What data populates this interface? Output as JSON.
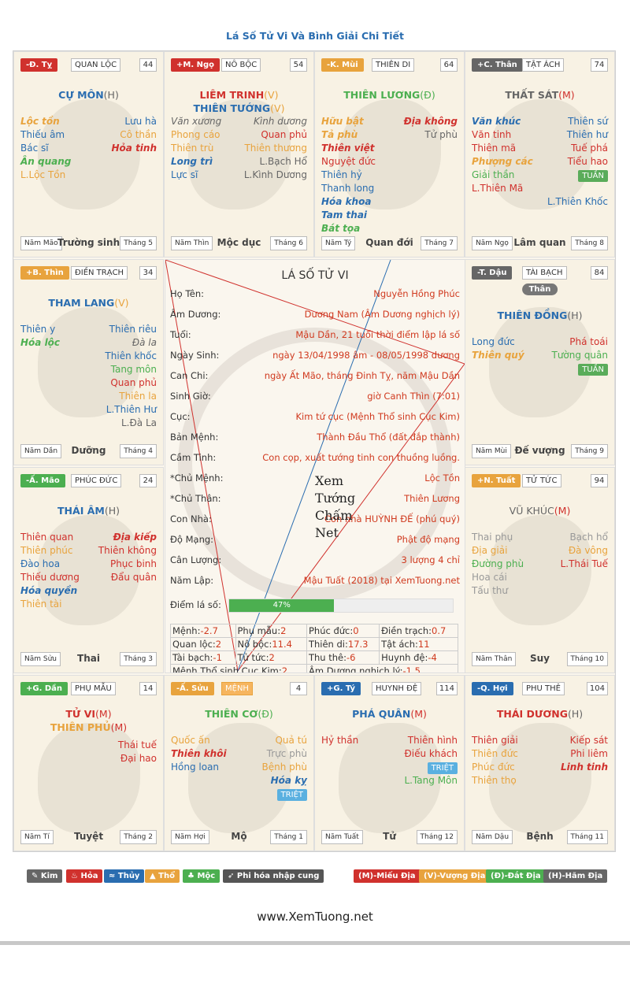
{
  "page": {
    "title": "Lá Số Tử Vi Và Bình Giải Chi Tiết",
    "footer": "www.XemTuong.net"
  },
  "cells": {
    "ty": {
      "badge": "-Đ. Tỵ",
      "palace": "QUAN LỘC",
      "num": "44",
      "main": [
        "CỰ MÔN"
      ],
      "quality": [
        "(H)"
      ],
      "stars": [
        [
          "Lộc tồn",
          "Lưu hà"
        ],
        [
          "Thiếu âm",
          "Cô thần"
        ],
        [
          "Bác sĩ",
          "Hỏa tinh"
        ],
        [
          "Ân quang",
          ""
        ],
        [
          "L.Lộc Tồn",
          ""
        ]
      ],
      "year": "Năm Mão",
      "stage": "Trường sinh",
      "month": "Tháng 5"
    },
    "ngo": {
      "badge": "+M. Ngọ",
      "palace": "NÔ BỘC",
      "num": "54",
      "main": [
        "LIÊM TRINH",
        "THIÊN TƯỚNG"
      ],
      "quality": [
        "(V)",
        "(V)"
      ],
      "stars": [
        [
          "Văn xương",
          "Kình dương"
        ],
        [
          "Phong cáo",
          "Quan phủ"
        ],
        [
          "Thiên trù",
          "Thiên thương"
        ],
        [
          "Long trì",
          "L.Bạch Hổ"
        ],
        [
          "Lực sĩ",
          "L.Kình Dương"
        ]
      ],
      "year": "Năm Thìn",
      "stage": "Mộc dục",
      "month": "Tháng 6"
    },
    "mui": {
      "badge": "-K. Mùi",
      "palace": "THIÊN DI",
      "num": "64",
      "main": [
        "THIÊN LƯƠNG"
      ],
      "quality": [
        "(Đ)"
      ],
      "stars": [
        [
          "Hữu bật",
          "Địa không"
        ],
        [
          "Tả phù",
          "Tử phù"
        ],
        [
          "Thiên việt",
          ""
        ],
        [
          "Nguyệt đức",
          ""
        ],
        [
          "Thiên hỷ",
          ""
        ],
        [
          "Thanh long",
          ""
        ],
        [
          "Hóa khoa",
          ""
        ],
        [
          "Tam thai",
          ""
        ],
        [
          "Bát tọa",
          ""
        ]
      ],
      "year": "Năm Tý",
      "stage": "Quan đới",
      "month": "Tháng 7"
    },
    "than": {
      "badge": "+C. Thân",
      "palace": "TẬT ÁCH",
      "num": "74",
      "main": [
        "THẤT SÁT"
      ],
      "quality": [
        "(M)"
      ],
      "stars": [
        [
          "Văn khúc",
          "Thiên sứ"
        ],
        [
          "Văn tinh",
          "Thiên hư"
        ],
        [
          "Thiên mã",
          "Tuế phá"
        ],
        [
          "Phượng các",
          "Tiểu hao"
        ],
        [
          "Giải thần",
          "TUẦN"
        ],
        [
          "L.Thiên Mã",
          ""
        ],
        [
          "",
          "L.Thiên Khốc"
        ]
      ],
      "year": "Năm Ngọ",
      "stage": "Lâm quan",
      "month": "Tháng 8"
    },
    "thin": {
      "badge": "+B. Thìn",
      "palace": "ĐIỀN TRẠCH",
      "num": "34",
      "main": [
        "THAM LANG"
      ],
      "quality": [
        "(V)"
      ],
      "stars": [
        [
          "Thiên y",
          "Thiên riêu"
        ],
        [
          "Hóa lộc",
          "Đà la"
        ],
        [
          "",
          "Thiên khốc"
        ],
        [
          "",
          "Tang môn"
        ],
        [
          "",
          "Quan phủ"
        ],
        [
          "",
          "Thiên la"
        ],
        [
          "",
          "L.Thiên Hư"
        ],
        [
          "",
          "L.Đà La"
        ]
      ],
      "year": "Năm Dần",
      "stage": "Dưỡng",
      "month": "Tháng 4"
    },
    "dau": {
      "badge": "-T. Dậu",
      "palace": "TÀI BẠCH",
      "num": "84",
      "than": "Thân",
      "main": [
        "THIÊN ĐỒNG"
      ],
      "quality": [
        "(H)"
      ],
      "stars": [
        [
          "Long đức",
          "Phá toái"
        ],
        [
          "Thiên quý",
          "Tường quân"
        ],
        [
          "",
          "TUẦN"
        ]
      ],
      "year": "Năm Mùi",
      "stage": "Đế vượng",
      "month": "Tháng 9"
    },
    "mao": {
      "badge": "-Ấ. Mão",
      "palace": "PHÚC ĐỨC",
      "num": "24",
      "main": [
        "THÁI ÂM"
      ],
      "quality": [
        "(H)"
      ],
      "stars": [
        [
          "Thiên quan",
          "Địa kiếp"
        ],
        [
          "Thiên phúc",
          "Thiên không"
        ],
        [
          "Đào hoa",
          "Phục binh"
        ],
        [
          "Thiếu dương",
          "Đẩu quân"
        ],
        [
          "Hóa quyền",
          ""
        ],
        [
          "Thiên tài",
          ""
        ]
      ],
      "year": "Năm Sửu",
      "stage": "Thai",
      "month": "Tháng 3"
    },
    "tuat": {
      "badge": "+N. Tuất",
      "palace": "TỬ TỨC",
      "num": "94",
      "main": [
        "VŨ KHÚC"
      ],
      "quality": [
        "(M)"
      ],
      "stars": [
        [
          "Thai phụ",
          "Bạch hổ"
        ],
        [
          "Địa giải",
          "Đà vông"
        ],
        [
          "Đường phù",
          "L.Thái Tuế"
        ],
        [
          "Hoa cái",
          ""
        ],
        [
          "Tấu thư",
          ""
        ]
      ],
      "year": "Năm Thân",
      "stage": "Suy",
      "month": "Tháng 10"
    },
    "dan": {
      "badge": "+G. Dần",
      "palace": "PHỤ MẪU",
      "num": "14",
      "main": [
        "TỬ VI",
        "THIÊN PHỦ"
      ],
      "quality": [
        "(M)",
        "(M)"
      ],
      "stars": [
        [
          "",
          "Thái tuế"
        ],
        [
          "",
          "Đại hao"
        ]
      ],
      "year": "Năm Tí",
      "stage": "Tuyệt",
      "month": "Tháng 2"
    },
    "suu": {
      "badge": "-Ấ. Sửu",
      "palace": "MỆNH",
      "num": "4",
      "main": [
        "THIÊN CƠ"
      ],
      "quality": [
        "(Đ)"
      ],
      "stars": [
        [
          "Quốc ấn",
          "Quả tú"
        ],
        [
          "Thiên khôi",
          "Trực phù"
        ],
        [
          "Hồng loan",
          "Bệnh phù"
        ],
        [
          "",
          "Hóa kỵ"
        ],
        [
          "",
          "TRIỆT"
        ]
      ],
      "year": "Năm Hợi",
      "stage": "Mộ",
      "month": "Tháng 1"
    },
    "ti": {
      "badge": "+G. Tý",
      "palace": "HUYNH ĐỆ",
      "num": "114",
      "main": [
        "PHÁ QUÂN"
      ],
      "quality": [
        "(M)"
      ],
      "stars": [
        [
          "Hỷ thần",
          "Thiên hình"
        ],
        [
          "",
          "Điếu khách"
        ],
        [
          "",
          "TRIỆT"
        ],
        [
          "",
          "L.Tang Môn"
        ]
      ],
      "year": "Năm Tuất",
      "stage": "Tử",
      "month": "Tháng 12"
    },
    "hoi": {
      "badge": "-Q. Hợi",
      "palace": "PHU THÊ",
      "num": "104",
      "main": [
        "THÁI DƯƠNG"
      ],
      "quality": [
        "(H)"
      ],
      "stars": [
        [
          "Thiên giải",
          "Kiếp sát"
        ],
        [
          "Thiên đức",
          "Phi liêm"
        ],
        [
          "Phúc đức",
          "Linh tinh"
        ],
        [
          "Thiên thọ",
          ""
        ]
      ],
      "year": "Năm Dậu",
      "stage": "Bệnh",
      "month": "Tháng 11"
    }
  },
  "center": {
    "title": "LÁ SỐ TỬ VI",
    "rows": [
      [
        "Họ Tên:",
        "Nguyễn Hồng Phúc"
      ],
      [
        "Âm Dương:",
        "Dương Nam (Âm Dương nghịch lý)"
      ],
      [
        "Tuổi:",
        "Mậu Dần, 21 tuổi thời điểm lập lá số"
      ],
      [
        "Ngày Sinh:",
        "ngày 13/04/1998 âm - 08/05/1998 dương"
      ],
      [
        "Can Chi:",
        "ngày Ất Mão, tháng Đinh Tỵ, năm Mậu Dần"
      ],
      [
        "Sinh Giờ:",
        "giờ Canh Thìn (7:01)"
      ],
      [
        "Cục:",
        "Kim tứ cục (Mệnh Thổ sinh Cục Kim)"
      ],
      [
        "Bản Mệnh:",
        "Thành Đầu Thổ (đất đắp thành)"
      ],
      [
        "Cầm Tinh:",
        "Con cọp, xuất tướng tinh con thuồng luồng."
      ],
      [
        "*Chủ Mệnh:",
        "Lộc Tồn"
      ],
      [
        "*Chủ Thân:",
        "Thiên Lương"
      ],
      [
        "Con Nhà:",
        "Con nhà HUỲNH ĐẾ (phú quý)"
      ],
      [
        "Độ Mạng:",
        "Phật độ mạng"
      ],
      [
        "Cân Lượng:",
        "3 lượng 4 chỉ"
      ],
      [
        "Năm Lập:",
        "Mậu Tuất (2018) tại XemTuong.net"
      ]
    ],
    "score_label": "Điểm lá số:",
    "score": 47,
    "score_text": "47%",
    "grid": [
      [
        [
          "Mệnh:",
          "-2.7"
        ],
        [
          "Phụ mẫu:",
          "2"
        ],
        [
          "Phúc đức:",
          "0"
        ],
        [
          "Điền trạch:",
          "0.7"
        ]
      ],
      [
        [
          "Quan lộc:",
          "2"
        ],
        [
          "Nô bộc:",
          "11.4"
        ],
        [
          "Thiên di:",
          "17.3"
        ],
        [
          "Tật ách:",
          "11"
        ]
      ],
      [
        [
          "Tài bạch:",
          "-1"
        ],
        [
          "Tử tức:",
          "2"
        ],
        [
          "Thu thê:",
          "-6"
        ],
        [
          "Huynh đệ:",
          "-4"
        ]
      ]
    ],
    "grid_last": [
      [
        "Mệnh Thổ sinh Cục Kim:",
        "2"
      ],
      [
        "Âm Dương nghịch lý:",
        "-1.5"
      ]
    ],
    "watermark": [
      "Xem",
      "Tướng",
      "Chấm",
      "Net"
    ]
  },
  "legend": {
    "kim": "Kim",
    "hoa": "Hỏa",
    "thuy": "Thủy",
    "tho": "Thổ",
    "moc": "Mộc",
    "phi": "Phi hóa nhập cung",
    "m": "(M)-Miếu Địa",
    "v": "(V)-Vượng Địa",
    "d": "(Đ)-Đắt Địa",
    "h": "(H)-Hãm Địa"
  },
  "colors": {
    "kim": "#666666",
    "hoa": "#d0312d",
    "thuy": "#2a6db0",
    "tho": "#e8a33d",
    "moc": "#4caf50"
  }
}
